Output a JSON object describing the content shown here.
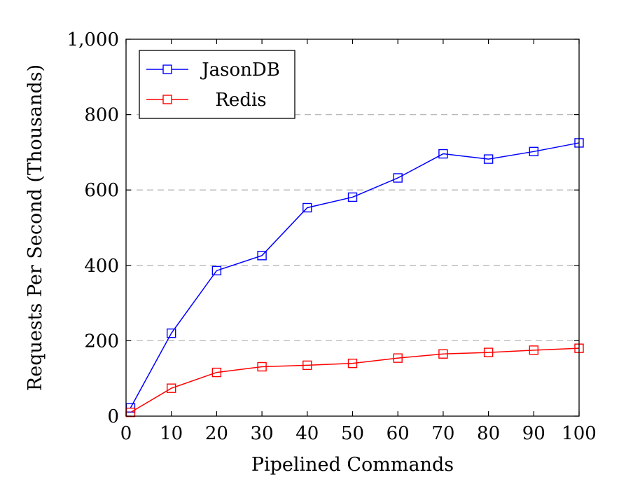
{
  "chart_data": {
    "type": "line",
    "title": "",
    "xlabel": "Pipelined Commands",
    "ylabel": "Requests Per Second (Thousands)",
    "xlim": [
      0,
      100
    ],
    "ylim": [
      0,
      1000
    ],
    "xticks": [
      0,
      10,
      20,
      30,
      40,
      50,
      60,
      70,
      80,
      90,
      100
    ],
    "xtick_labels": [
      "0",
      "10",
      "20",
      "30",
      "40",
      "50",
      "60",
      "70",
      "80",
      "90",
      "100"
    ],
    "yticks": [
      0,
      200,
      400,
      600,
      800,
      1000
    ],
    "ytick_labels": [
      "0",
      "200",
      "400",
      "600",
      "800",
      "1,000"
    ],
    "grid": "horizontal dashed at y ticks",
    "legend_position": "top-left",
    "series": [
      {
        "name": "JasonDB",
        "color": "#0000ff",
        "marker": "open-square",
        "x": [
          1,
          10,
          20,
          30,
          40,
          50,
          60,
          70,
          80,
          90,
          100
        ],
        "y": [
          22,
          220,
          386,
          426,
          553,
          581,
          632,
          696,
          682,
          702,
          725
        ]
      },
      {
        "name": "Redis",
        "color": "#ff0000",
        "marker": "open-square",
        "x": [
          1,
          10,
          20,
          30,
          40,
          50,
          60,
          70,
          80,
          90,
          100
        ],
        "y": [
          10,
          74,
          116,
          131,
          135,
          140,
          154,
          165,
          169,
          175,
          180
        ]
      }
    ]
  }
}
